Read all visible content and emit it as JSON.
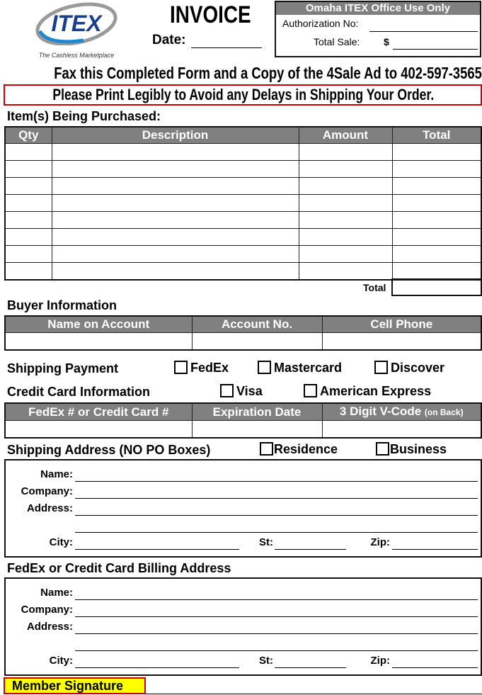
{
  "logo": {
    "brand": "ITEX",
    "tagline": "The Cashless Marketplace"
  },
  "title": "INVOICE",
  "date_label": "Date:",
  "office": {
    "header": "Omaha ITEX Office Use Only",
    "auth_label": "Authorization No:",
    "total_label": "Total Sale:",
    "currency": "$"
  },
  "fax_notice": "Fax this Completed Form and a Copy of the 4Sale Ad to 402-597-3565.",
  "print_notice": "Please Print Legibly to Avoid any Delays in Shipping Your Order.",
  "items": {
    "heading": "Item(s) Being Purchased:",
    "columns": [
      "Qty",
      "Description",
      "Amount",
      "Total"
    ],
    "row_count": 8,
    "total_label": "Total"
  },
  "buyer": {
    "heading": "Buyer Information",
    "columns": [
      "Name on Account",
      "Account No.",
      "Cell Phone"
    ]
  },
  "shipping_payment": {
    "label": "Shipping Payment",
    "options": [
      "FedEx",
      "Mastercard",
      "Discover"
    ]
  },
  "credit_card": {
    "label": "Credit Card Information",
    "options": [
      "Visa",
      "American Express"
    ],
    "columns": [
      "FedEx # or Credit Card #",
      "Expiration Date",
      "3 Digit V-Code"
    ],
    "vcode_note": "(on Back)"
  },
  "shipping_address": {
    "heading": "Shipping Address (NO PO Boxes)",
    "options": [
      "Residence",
      "Business"
    ],
    "fields": {
      "name": "Name:",
      "company": "Company:",
      "address": "Address:",
      "city": "City:",
      "st": "St:",
      "zip": "Zip:"
    }
  },
  "billing_address": {
    "heading": "FedEx or Credit Card Billing Address",
    "fields": {
      "name": "Name:",
      "company": "Company:",
      "address": "Address:",
      "city": "City:",
      "st": "St:",
      "zip": "Zip:"
    }
  },
  "signature": {
    "label": "Member Signature"
  },
  "colors": {
    "header_gray": "#808080",
    "notice_red": "#cc0000",
    "signature_yellow": "#ffff00",
    "logo_blue": "#1a3f8f"
  }
}
